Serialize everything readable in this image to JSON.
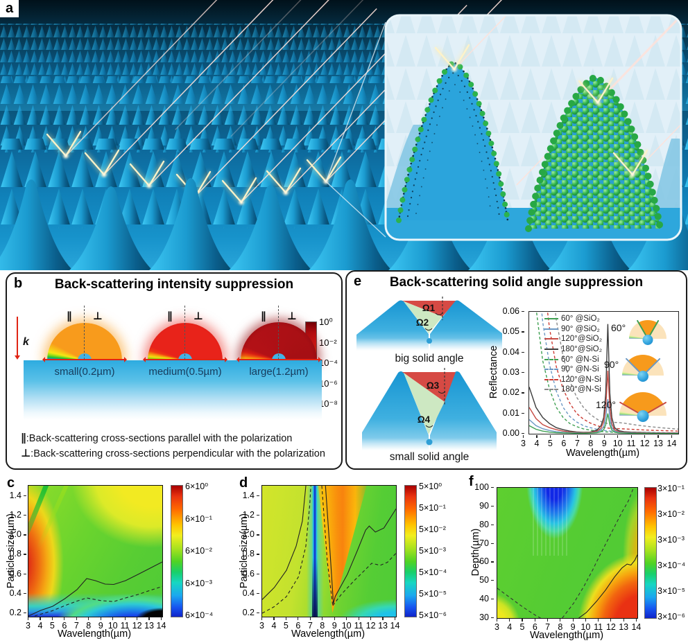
{
  "panel_a": {
    "label": "a",
    "description": "3D array of blue micro-cones; red incident laser beams scatter as yellow sparks. Inset: bare nanostructured cone with dark surface dots (left) and cone coated with green nanoparticles (right)."
  },
  "panel_b": {
    "label": "b",
    "title": "Back-scattering intensity suppression",
    "k_label": "k",
    "parallel_symbol": "∥",
    "perpendicular_symbol": "⊥",
    "lobes": [
      {
        "label": "small(0.2µm)",
        "color": "#f89b1c"
      },
      {
        "label": "medium(0.5µm)",
        "color": "#e8231a"
      },
      {
        "label": "large(1.2µm)",
        "color": "#a50f14"
      }
    ],
    "colorbar_ticks": [
      "10⁰",
      "10⁻²",
      "10⁻⁴",
      "10⁻⁶",
      "10⁻⁸"
    ],
    "legend": [
      {
        "symbol": "∥",
        "text": ":Back-scattering cross-sections parallel with the polarization"
      },
      {
        "symbol": "⊥",
        "text": ":Back-scattering cross-sections perpendicular with the polarization"
      }
    ]
  },
  "panel_e": {
    "label": "e",
    "title": "Back-scattering solid angle suppression",
    "diagrams": [
      {
        "caption": "big solid angle",
        "omega_red": "Ω1",
        "omega_green": "Ω2"
      },
      {
        "caption": "small solid angle",
        "omega_red": "Ω3",
        "omega_green": "Ω4"
      }
    ],
    "gauges": [
      {
        "label": "60°"
      },
      {
        "label": "90°"
      },
      {
        "label": "120°"
      }
    ]
  },
  "panel_c": {
    "label": "c"
  },
  "panel_d": {
    "label": "d"
  },
  "panel_f": {
    "label": "f"
  },
  "chart_data": [
    {
      "type": "line",
      "panel": "e",
      "xlabel": "Wavelength(µm)",
      "ylabel": "Reflectance",
      "xlim": [
        3,
        14
      ],
      "ylim": [
        0,
        0.06
      ],
      "x_ticks": [
        "3",
        "4",
        "5",
        "6",
        "7",
        "8",
        "9",
        "10",
        "11",
        "12",
        "13",
        "14"
      ],
      "y_ticks": [
        "0.06",
        "0.05",
        "0.04",
        "0.03",
        "0.02",
        "0.01",
        "0.00"
      ],
      "legend_position": "upper-left-inside",
      "x": [
        3,
        3.5,
        4,
        4.5,
        5,
        5.5,
        6,
        6.5,
        7,
        7.5,
        8,
        8.3,
        8.5,
        8.65,
        8.8,
        8.95,
        9.1,
        9.3,
        9.6,
        10,
        10.5,
        11,
        12,
        13,
        14
      ],
      "series": [
        {
          "name": "60°  @SiO₂",
          "color": "#3fa052",
          "dash": false,
          "y": [
            0.004,
            0.0022,
            0.0013,
            0.0008,
            0.0005,
            0.0004,
            0.0003,
            0.0002,
            0.0002,
            0.0003,
            0.0005,
            0.001,
            0.002,
            0.0045,
            0.01,
            0.0045,
            0.0018,
            0.0008,
            0.0004,
            0.0003,
            0.0002,
            0.0002,
            0.0002,
            0.0001,
            0.0001
          ]
        },
        {
          "name": "90°  @SiO₂",
          "color": "#6b98c4",
          "dash": false,
          "y": [
            0.007,
            0.004,
            0.0025,
            0.0016,
            0.001,
            0.0007,
            0.0005,
            0.0004,
            0.0003,
            0.0004,
            0.0008,
            0.0018,
            0.0035,
            0.008,
            0.017,
            0.008,
            0.003,
            0.0013,
            0.0007,
            0.0005,
            0.0004,
            0.0003,
            0.0003,
            0.0002,
            0.0002
          ]
        },
        {
          "name": "120°@SiO₂",
          "color": "#c64a42",
          "dash": false,
          "y": [
            0.013,
            0.0075,
            0.0045,
            0.003,
            0.002,
            0.0013,
            0.0009,
            0.0006,
            0.0005,
            0.0006,
            0.0012,
            0.0028,
            0.006,
            0.013,
            0.031,
            0.013,
            0.005,
            0.002,
            0.001,
            0.0007,
            0.0005,
            0.0005,
            0.0004,
            0.0003,
            0.0003
          ]
        },
        {
          "name": "180°@SiO₂",
          "color": "#3c3c3c",
          "dash": false,
          "y": [
            0.023,
            0.013,
            0.008,
            0.005,
            0.003,
            0.002,
            0.0013,
            0.0009,
            0.0007,
            0.0008,
            0.0018,
            0.004,
            0.008,
            0.02,
            0.054,
            0.02,
            0.008,
            0.003,
            0.0015,
            0.001,
            0.0008,
            0.0007,
            0.0005,
            0.0004,
            0.0004
          ]
        },
        {
          "name": "60°  @N-Si",
          "color": "#3fa052",
          "dash": true,
          "y": [
            0.1,
            0.062,
            0.036,
            0.022,
            0.013,
            0.008,
            0.005,
            0.0035,
            0.0024,
            0.0018,
            0.0013,
            0.0011,
            0.001,
            0.0009,
            0.0009,
            0.0008,
            0.0008,
            0.0007,
            0.0006,
            0.0006,
            0.0005,
            0.0005,
            0.0004,
            0.0003,
            0.0003
          ]
        },
        {
          "name": "90°  @N-Si",
          "color": "#6b98c4",
          "dash": true,
          "y": [
            0.14,
            0.09,
            0.055,
            0.034,
            0.021,
            0.013,
            0.0085,
            0.0058,
            0.004,
            0.003,
            0.0022,
            0.0018,
            0.0016,
            0.0015,
            0.0014,
            0.0013,
            0.0012,
            0.0011,
            0.001,
            0.0009,
            0.0008,
            0.0007,
            0.0006,
            0.0005,
            0.0004
          ]
        },
        {
          "name": "120°@N-Si",
          "color": "#cc3b33",
          "dash": true,
          "y": [
            0.2,
            0.13,
            0.08,
            0.052,
            0.033,
            0.022,
            0.015,
            0.01,
            0.0072,
            0.0053,
            0.004,
            0.0034,
            0.0031,
            0.0029,
            0.0028,
            0.0027,
            0.0027,
            0.0026,
            0.0025,
            0.0024,
            0.0022,
            0.002,
            0.0017,
            0.0015,
            0.0013
          ]
        },
        {
          "name": "180°@N-Si",
          "color": "#8a8a8a",
          "dash": true,
          "y": [
            0.3,
            0.2,
            0.13,
            0.085,
            0.056,
            0.038,
            0.026,
            0.018,
            0.013,
            0.0095,
            0.0072,
            0.006,
            0.0055,
            0.0052,
            0.005,
            0.0052,
            0.0055,
            0.0056,
            0.0055,
            0.0052,
            0.0047,
            0.0042,
            0.0034,
            0.0028,
            0.0023
          ]
        }
      ]
    },
    {
      "type": "heatmap",
      "panel": "c",
      "xlabel": "Wavelength(µm)",
      "ylabel": "Particle size(µm)",
      "xlim": [
        3,
        14
      ],
      "ylim": [
        0.2,
        1.5
      ],
      "x_ticks": [
        "3",
        "4",
        "5",
        "6",
        "7",
        "8",
        "9",
        "10",
        "11",
        "12",
        "13",
        "14"
      ],
      "y_ticks": [
        "1.4",
        "1.2",
        "1.0",
        "0.8",
        "0.6",
        "0.4",
        "0.2"
      ],
      "colorbar_ticks": [
        "6×10⁰",
        "6×10⁻¹",
        "6×10⁻²",
        "6×10⁻³",
        "6×10⁻⁴"
      ],
      "colormap": "jet",
      "features": "Hot red-orange region at short wavelengths (3-5 µm) for sizes 0.4-1.1 µm with diagonal resonance streaks; yellow plateau top-right; green mid-field; cyan-blue band below dashed contour at bottom; black minimum at bottom-right corner. Solid contour rises from (3,0.2) to (14,0.75); dashed contour from (3.5,0.2) to (14,0.5)."
    },
    {
      "type": "heatmap",
      "panel": "d",
      "xlabel": "Wavelength(µm)",
      "ylabel": "Particle size(µm)",
      "xlim": [
        3,
        14
      ],
      "ylim": [
        0.2,
        1.5
      ],
      "x_ticks": [
        "3",
        "4",
        "5",
        "6",
        "7",
        "8",
        "9",
        "10",
        "11",
        "12",
        "13",
        "14"
      ],
      "y_ticks": [
        "1.4",
        "1.2",
        "1.0",
        "0.8",
        "0.6",
        "0.4",
        "0.2"
      ],
      "colorbar_ticks": [
        "5×10⁰",
        "5×10⁻¹",
        "5×10⁻²",
        "5×10⁻³",
        "5×10⁻⁴",
        "5×10⁻⁵",
        "5×10⁻⁶"
      ],
      "colormap": "jet",
      "features": "Deep blue vertical minimum band at ≈7.3 µm; orange fan-shaped maximum opening upward from apex at ≈8.8 µm / 0.3 µm; yellow-green background; cyan strip at bottom-right; solid and dashed contours flank the band and the fan."
    },
    {
      "type": "heatmap",
      "panel": "f",
      "xlabel": "Wavelength(µm)",
      "ylabel": "Depth(µm)",
      "xlim": [
        3,
        14
      ],
      "ylim": [
        30,
        100
      ],
      "x_ticks": [
        "3",
        "4",
        "5",
        "6",
        "7",
        "8",
        "9",
        "10",
        "11",
        "12",
        "13",
        "14"
      ],
      "y_ticks": [
        "100",
        "90",
        "80",
        "70",
        "60",
        "50",
        "40",
        "30"
      ],
      "colorbar_ticks": [
        "3×10⁻¹",
        "3×10⁻²",
        "3×10⁻³",
        "3×10⁻⁴",
        "3×10⁻⁵",
        "3×10⁻⁶"
      ],
      "colormap": "jet",
      "features": "Blue minimum lobe with vertical striations at 5-9.5 µm for depths 65-100 µm; yellow wedge at bottom-left; large red maximum at long wavelengths and shallow depth (bottom-right); dashed contour dips to bottom near 6.4-8.1 µm then climbs to top-right; solid contour rises from (9.4,30) to (14,64)."
    }
  ]
}
